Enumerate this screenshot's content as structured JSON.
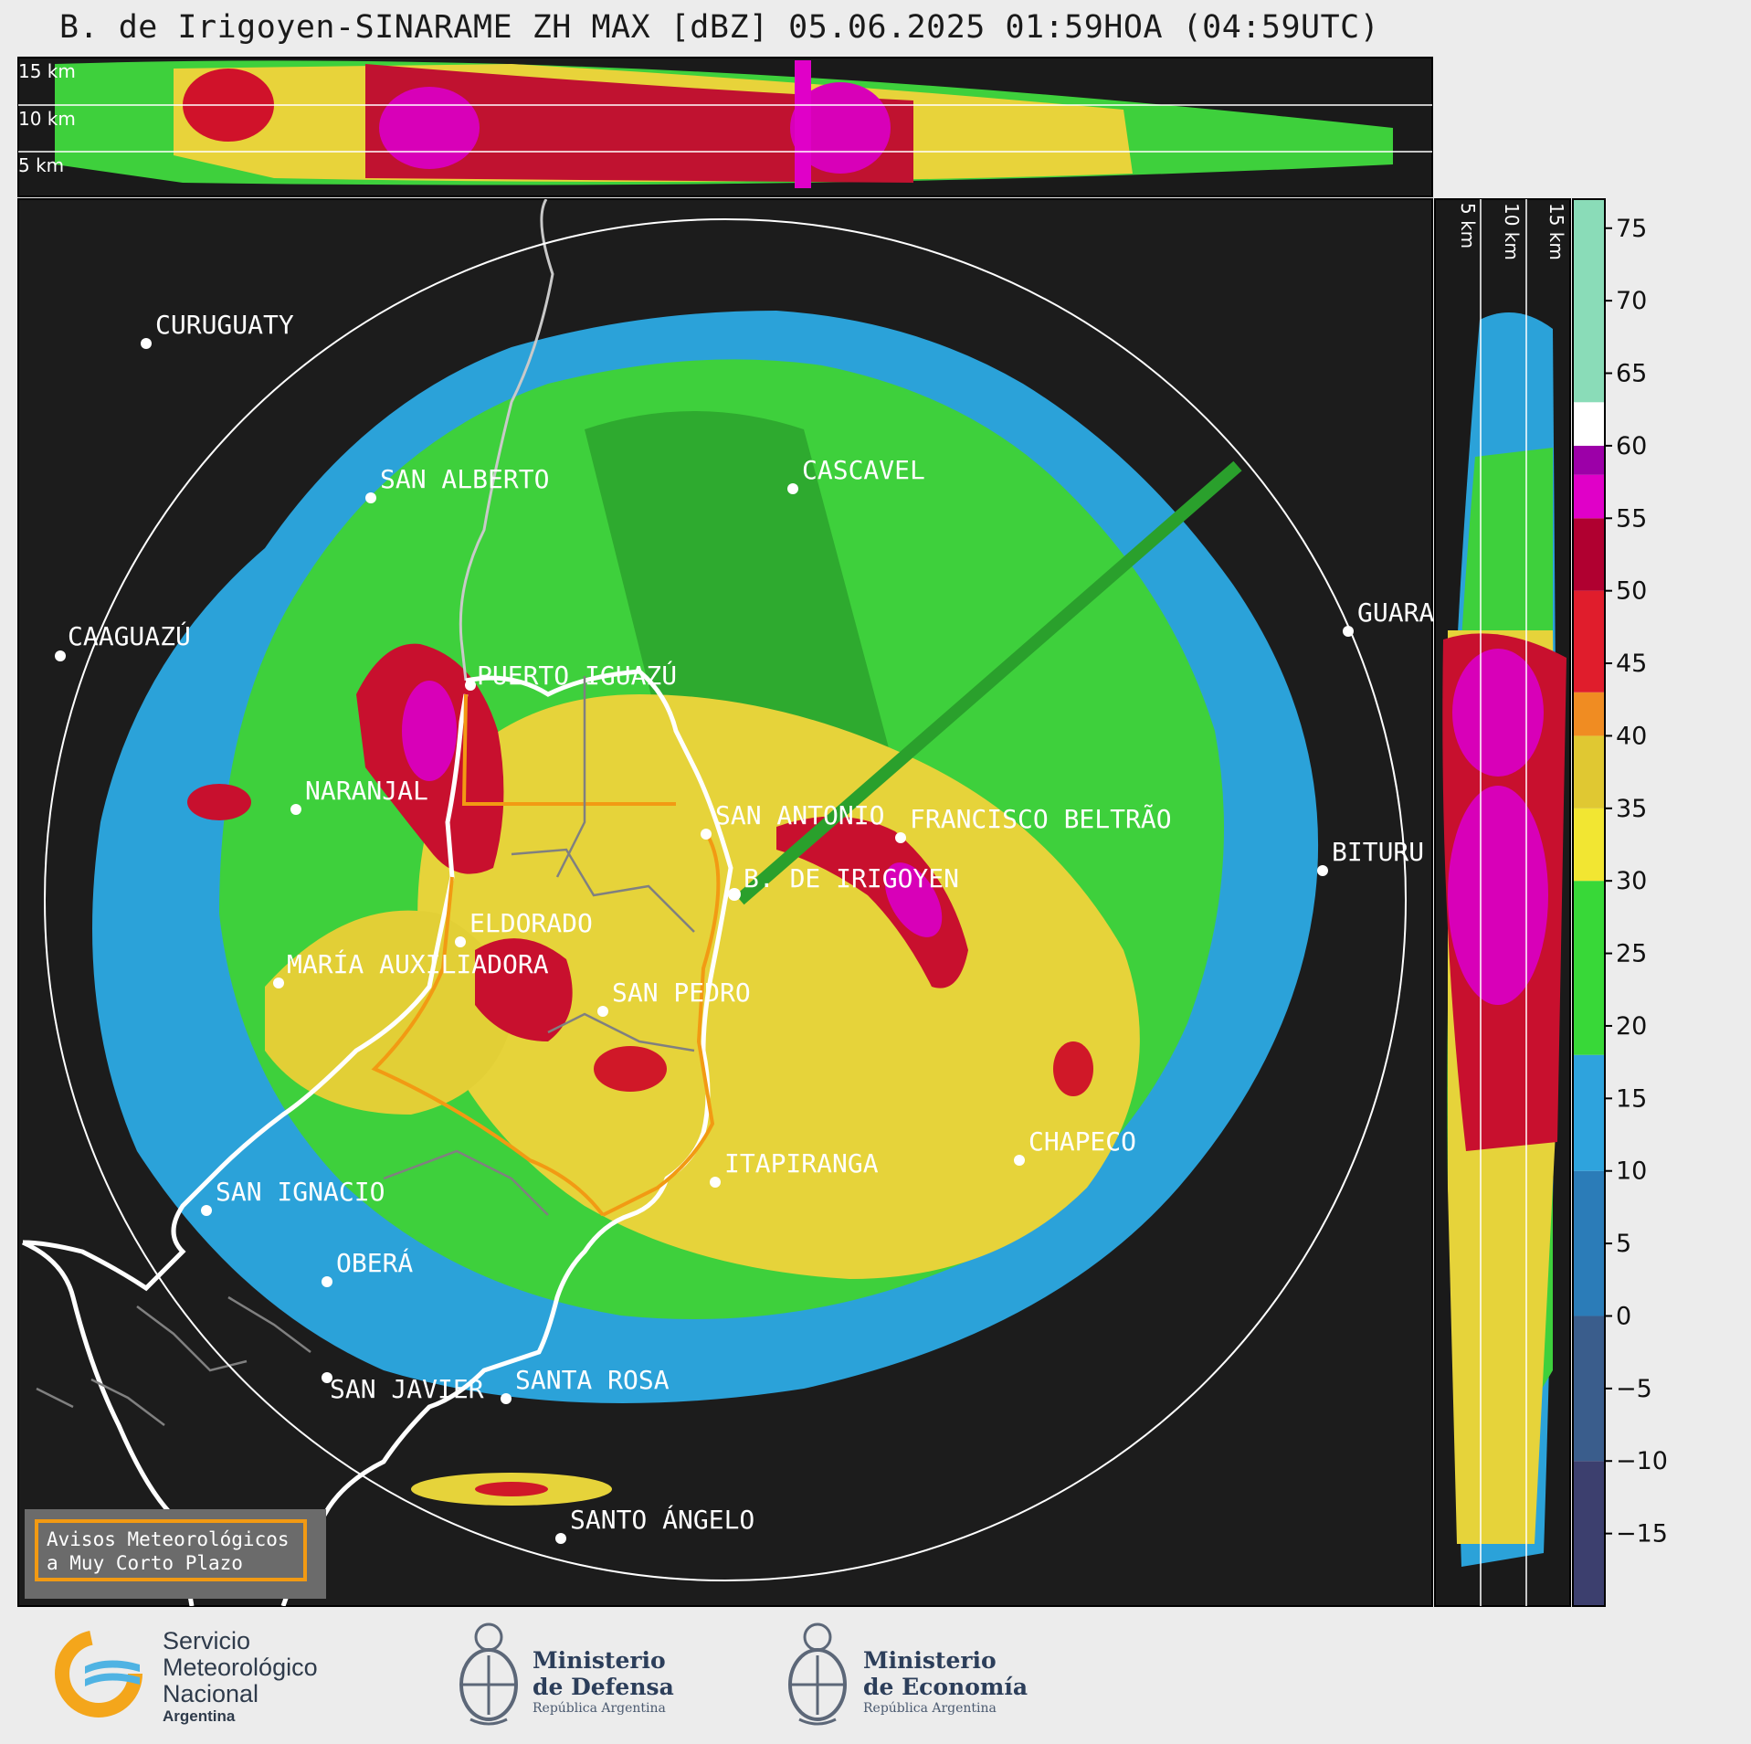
{
  "title": "B. de Irigoyen-SINARAME ZH MAX [dBZ] 05.06.2025 01:59HOA (04:59UTC)",
  "top_profile": {
    "height_labels": [
      "15 km",
      "10 km",
      "5 km"
    ]
  },
  "side_profile": {
    "height_labels": [
      "5 km",
      "10 km",
      "15 km"
    ]
  },
  "radar": {
    "name": "B. DE IRIGOYEN"
  },
  "cities": [
    {
      "name": "CURUGUATY"
    },
    {
      "name": "SAN ALBERTO"
    },
    {
      "name": "CASCAVEL"
    },
    {
      "name": "CAAGUAZÚ"
    },
    {
      "name": "GUARA"
    },
    {
      "name": "PUERTO IGUAZÚ"
    },
    {
      "name": "NARANJAL"
    },
    {
      "name": "SAN ANTONIO"
    },
    {
      "name": "FRANCISCO BELTRÃO"
    },
    {
      "name": "BITURU"
    },
    {
      "name": "ELDORADO"
    },
    {
      "name": "MARÍA AUXILIADORA"
    },
    {
      "name": "SAN PEDRO"
    },
    {
      "name": "CHAPECO"
    },
    {
      "name": "ITAPIRANGA"
    },
    {
      "name": "SAN IGNACIO"
    },
    {
      "name": "OBERÁ"
    },
    {
      "name": "SAN JAVIER"
    },
    {
      "name": "SANTA ROSA"
    },
    {
      "name": "SANTO ÁNGELO"
    }
  ],
  "colorbar": {
    "unit": "dBZ",
    "ticks": [
      "75",
      "70",
      "65",
      "60",
      "55",
      "50",
      "45",
      "40",
      "35",
      "30",
      "25",
      "20",
      "15",
      "10",
      "5",
      "0",
      "−5",
      "−10",
      "−15"
    ],
    "range": [
      -20,
      77
    ],
    "stops": [
      {
        "from": -20,
        "to": -10,
        "color": "#3c3f6e"
      },
      {
        "from": -10,
        "to": 0,
        "color": "#3a5d8c"
      },
      {
        "from": 0,
        "to": 10,
        "color": "#2b7cb8"
      },
      {
        "from": 10,
        "to": 18,
        "color": "#2ea3dd"
      },
      {
        "from": 18,
        "to": 30,
        "color": "#38d838"
      },
      {
        "from": 30,
        "to": 35,
        "color": "#f2e632"
      },
      {
        "from": 35,
        "to": 40,
        "color": "#e0c832"
      },
      {
        "from": 40,
        "to": 43,
        "color": "#f08c22"
      },
      {
        "from": 43,
        "to": 50,
        "color": "#e01d2c"
      },
      {
        "from": 50,
        "to": 55,
        "color": "#b00030"
      },
      {
        "from": 55,
        "to": 58,
        "color": "#e000c8"
      },
      {
        "from": 58,
        "to": 60,
        "color": "#9c00a8"
      },
      {
        "from": 60,
        "to": 63,
        "color": "#ffffff"
      },
      {
        "from": 63,
        "to": 77,
        "color": "#8adcb8"
      }
    ]
  },
  "warning_box": {
    "line1": "Avisos Meteorológicos",
    "line2": "a Muy Corto Plazo"
  },
  "logos": {
    "smn": {
      "line1": "Servicio",
      "line2": "Meteorológico",
      "line3": "Nacional",
      "line4": "Argentina"
    },
    "defensa": {
      "line1": "Ministerio",
      "line2": "de Defensa",
      "line3": "República Argentina"
    },
    "economia": {
      "line1": "Ministerio",
      "line2": "de Economía",
      "line3": "República Argentina"
    }
  }
}
